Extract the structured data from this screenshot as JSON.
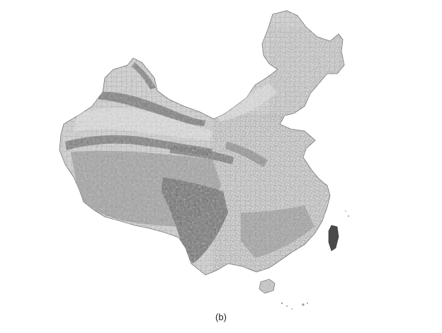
{
  "figure": {
    "caption": "(b)"
  },
  "colors": {
    "background": "#ffffff",
    "land_fill": "#d6d6d6",
    "relief_dark": "#6f6f6f",
    "relief_mid": "#9a9a9a",
    "border_line": "#7a7a7a"
  }
}
